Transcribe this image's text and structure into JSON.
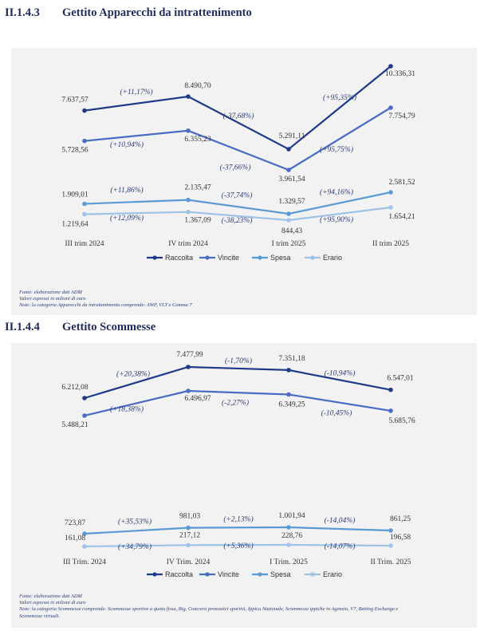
{
  "sections": [
    {
      "number": "II.1.4.3",
      "title": "Gettito Apparecchi da intrattenimento",
      "notes": [
        "Fonte: elaborazione dati ADM",
        "Valori espressi in milioni di euro",
        "Note: la categoria Apparecchi da intrattenimento comprende: AWP, VLT e Comma 7"
      ]
    },
    {
      "number": "II.1.4.4",
      "title": "Gettito Scommesse",
      "notes": [
        "Fonte: elaborazione dati ADM",
        "Valori espressi in milioni di euro",
        "Note: la categoria Scommesse comprende: Scommesse sportive a quota fissa, Big, Concorsi pronostici sportivi, Ippica Nazionale, Scommesse ippiche in Agenzia, V7, Betting Exchange e",
        "Scommesse virtuali."
      ]
    }
  ],
  "colors": {
    "Raccolta": "#1f3a8a",
    "Vincite": "#4a6cc4",
    "Spesa": "#5b9bd5",
    "Erario": "#9fc3e6"
  },
  "chart_data": [
    {
      "type": "line",
      "title": "Gettito Apparecchi da intrattenimento",
      "categories": [
        "III trim 2024",
        "IV trim 2024",
        "I trim 2025",
        "II trim 2025"
      ],
      "series": [
        {
          "name": "Raccolta",
          "values": [
            7637.57,
            8490.7,
            5291.11,
            10336.31
          ],
          "labels": [
            "7.637,57",
            "8.490,70",
            "5.291,11",
            "10.336,31"
          ],
          "changes": [
            "(+11,17%)",
            "(-37,68%)",
            "(+95,35%)"
          ]
        },
        {
          "name": "Vincite",
          "values": [
            5728.56,
            6355.23,
            3961.54,
            7754.79
          ],
          "labels": [
            "5.728,56",
            "6.355,23",
            "3.961,54",
            "7.754,79"
          ],
          "changes": [
            "(+10,94%)",
            "(-37,66%)",
            "(+95,75%)"
          ]
        },
        {
          "name": "Spesa",
          "values": [
            1909.01,
            2135.47,
            1329.57,
            2581.52
          ],
          "labels": [
            "1.909,01",
            "2.135,47",
            "1.329,57",
            "2.581,52"
          ],
          "changes": [
            "(+11,86%)",
            "(-37,74%)",
            "(+94,16%)"
          ]
        },
        {
          "name": "Erario",
          "values": [
            1219.64,
            1367.09,
            844.43,
            1654.21
          ],
          "labels": [
            "1.219,64",
            "1.367,09",
            "844,43",
            "1.654,21"
          ],
          "changes": [
            "(+12,09%)",
            "(-38,23%)",
            "(+95,90%)"
          ]
        }
      ],
      "legend": "bottom"
    },
    {
      "type": "line",
      "title": "Gettito Scommesse",
      "categories": [
        "III Trim. 2024",
        "IV Trim. 2024",
        "I Trim. 2025",
        "II Trim. 2025"
      ],
      "series": [
        {
          "name": "Raccolta",
          "values": [
            6212.08,
            7477.99,
            7351.18,
            6547.01
          ],
          "labels": [
            "6.212,08",
            "7.477,99",
            "7.351,18",
            "6.547,01"
          ],
          "changes": [
            "(+20,38%)",
            "(-1,70%)",
            "(-10,94%)"
          ]
        },
        {
          "name": "Vincite",
          "values": [
            5488.21,
            6496.97,
            6349.25,
            5685.76
          ],
          "labels": [
            "5.488,21",
            "6.496,97",
            "6.349,25",
            "5.685,76"
          ],
          "changes": [
            "(+18,38%)",
            "(-2,27%)",
            "(-10,45%)"
          ]
        },
        {
          "name": "Spesa",
          "values": [
            723.87,
            981.03,
            1001.94,
            861.25
          ],
          "labels": [
            "723,87",
            "981,03",
            "1.001,94",
            "861,25"
          ],
          "changes": [
            "(+35,53%)",
            "(+2,13%)",
            "(-14,04%)"
          ]
        },
        {
          "name": "Erario",
          "values": [
            161.08,
            217.12,
            228.76,
            196.58
          ],
          "labels": [
            "161,08",
            "217,12",
            "228,76",
            "196,58"
          ],
          "changes": [
            "(+34,79%)",
            "(+5,36%)",
            "(-14,07%)"
          ]
        }
      ],
      "legend": "bottom"
    }
  ]
}
